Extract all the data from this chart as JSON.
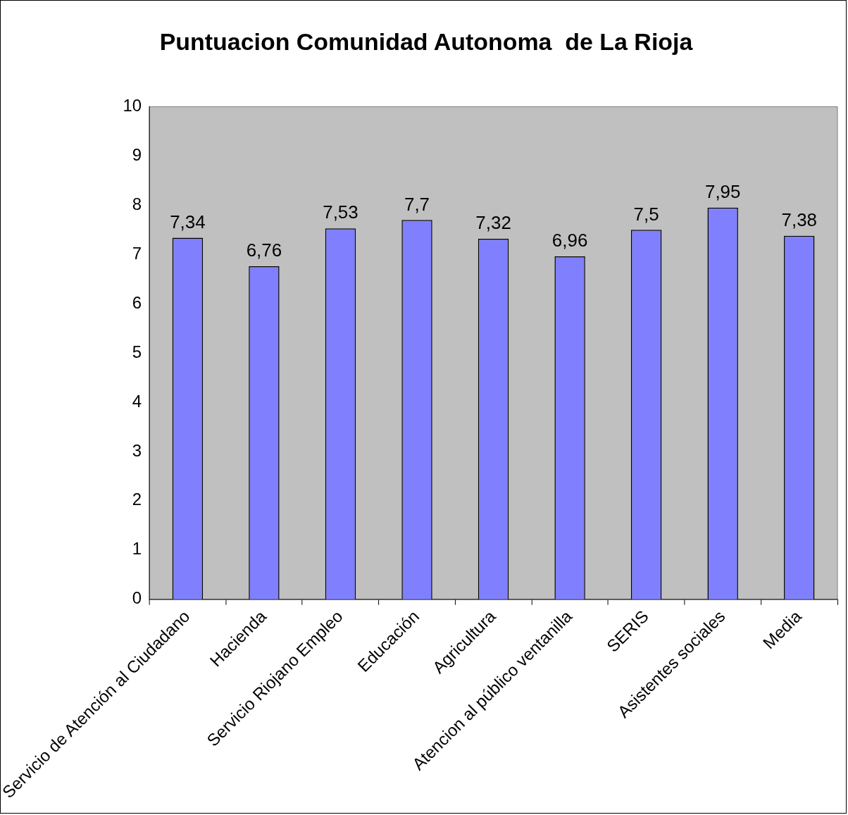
{
  "chart_data": {
    "type": "bar",
    "title": "Puntuacion Comunidad Autonoma  de La Rioja",
    "categories": [
      "Servicio de Atención al Ciudadano",
      "Hacienda",
      "Servicio Riojano Empleo",
      "Educación",
      "Agricultura",
      "Atencion al público ventanilla",
      "SERIS",
      "Asistentes sociales",
      "Media"
    ],
    "values": [
      7.34,
      6.76,
      7.53,
      7.7,
      7.32,
      6.96,
      7.5,
      7.95,
      7.38
    ],
    "value_labels": [
      "7,34",
      "6,76",
      "7,53",
      "7,7",
      "7,32",
      "6,96",
      "7,5",
      "7,95",
      "7,38"
    ],
    "color": "#8080ff",
    "ylim": [
      0,
      10
    ],
    "yticks": [
      0,
      1,
      2,
      3,
      4,
      5,
      6,
      7,
      8,
      9,
      10
    ]
  }
}
